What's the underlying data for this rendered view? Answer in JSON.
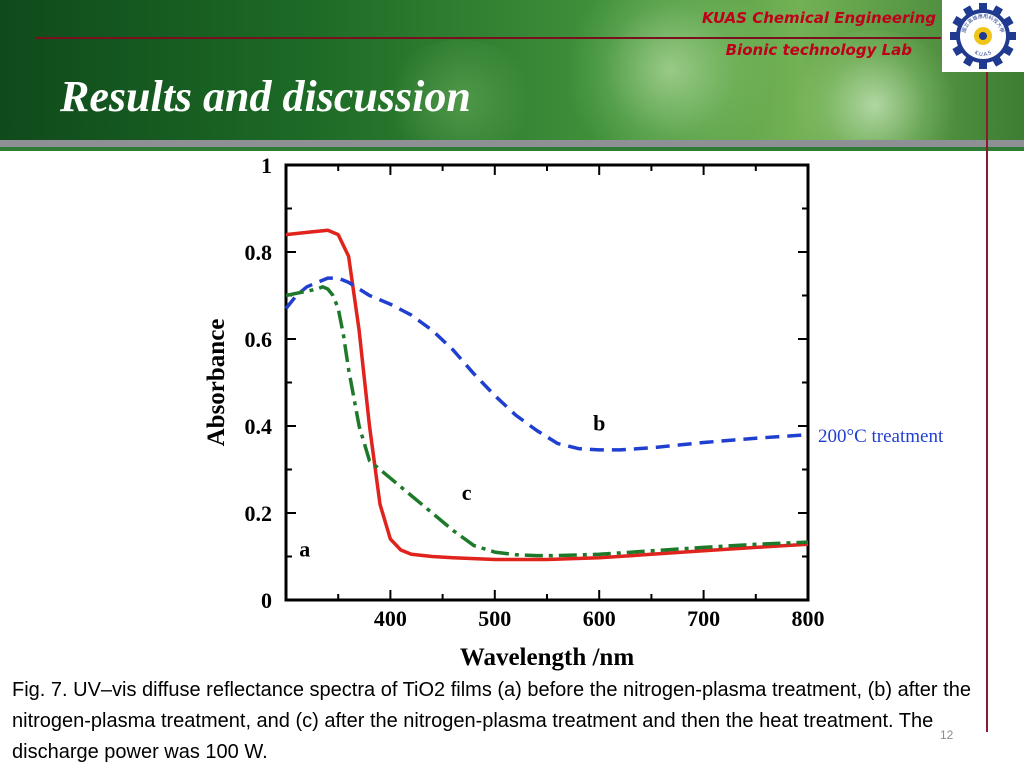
{
  "header": {
    "lab_line1": "KUAS Chemical Engineering",
    "lab_line2": "Bionic  technology  Lab",
    "logo_text_top": "國立高雄應用科技大學",
    "logo_text_bottom": "K.U.A.S",
    "title": "Results and discussion"
  },
  "annotation": "200°C treatment",
  "caption": "Fig. 7. UV–vis diffuse reflectance spectra of TiO2 films (a) before the nitrogen-plasma treatment, (b) after the nitrogen-plasma treatment, and (c) after the nitrogen-plasma treatment and then the heat treatment. The discharge power was 100 W.",
  "page_number": "12",
  "colors": {
    "title_accent": "#c0001b",
    "series_a": "#e0231c",
    "series_b": "#1f3fd0",
    "series_c": "#1e7a2a",
    "annotation": "#1f3fd0"
  },
  "chart_data": {
    "type": "line",
    "title": "",
    "xlabel": "Wavelength /nm",
    "ylabel": "Absorbance",
    "xlim": [
      300,
      800
    ],
    "ylim": [
      0,
      1
    ],
    "xticks": [
      400,
      500,
      600,
      700,
      800
    ],
    "xtick_labels": [
      "400",
      "500",
      "600",
      "700",
      "800"
    ],
    "yticks": [
      0,
      0.2,
      0.4,
      0.6,
      0.8,
      1
    ],
    "ytick_labels": [
      "0",
      "0.2",
      "0.4",
      "0.6",
      "0.8",
      "1"
    ],
    "grid": false,
    "series": [
      {
        "name": "a",
        "style": "solid",
        "color": "#e0231c",
        "x": [
          300,
          320,
          340,
          350,
          360,
          370,
          380,
          390,
          400,
          410,
          420,
          440,
          460,
          500,
          550,
          600,
          650,
          700,
          750,
          800
        ],
        "y": [
          0.84,
          0.845,
          0.85,
          0.84,
          0.79,
          0.62,
          0.4,
          0.22,
          0.14,
          0.115,
          0.105,
          0.1,
          0.097,
          0.093,
          0.093,
          0.097,
          0.105,
          0.113,
          0.121,
          0.128
        ]
      },
      {
        "name": "b",
        "style": "dashed",
        "color": "#1f3fd0",
        "x": [
          300,
          310,
          320,
          330,
          340,
          350,
          360,
          370,
          380,
          400,
          420,
          440,
          460,
          480,
          500,
          520,
          540,
          560,
          580,
          600,
          620,
          650,
          700,
          750,
          800
        ],
        "y": [
          0.67,
          0.7,
          0.72,
          0.73,
          0.74,
          0.74,
          0.73,
          0.715,
          0.7,
          0.68,
          0.655,
          0.62,
          0.575,
          0.52,
          0.47,
          0.425,
          0.39,
          0.36,
          0.348,
          0.345,
          0.345,
          0.35,
          0.362,
          0.372,
          0.38
        ]
      },
      {
        "name": "c",
        "style": "dash-dot",
        "color": "#1e7a2a",
        "x": [
          300,
          310,
          320,
          330,
          335,
          340,
          345,
          350,
          355,
          360,
          370,
          380,
          400,
          420,
          440,
          460,
          480,
          500,
          520,
          540,
          560,
          600,
          650,
          700,
          750,
          800
        ],
        "y": [
          0.7,
          0.705,
          0.71,
          0.715,
          0.72,
          0.715,
          0.7,
          0.67,
          0.61,
          0.53,
          0.4,
          0.32,
          0.28,
          0.24,
          0.2,
          0.16,
          0.125,
          0.11,
          0.104,
          0.102,
          0.102,
          0.105,
          0.113,
          0.121,
          0.128,
          0.133
        ]
      }
    ],
    "annotations": [
      {
        "text": "a",
        "x": 318,
        "y": 0.1
      },
      {
        "text": "b",
        "x": 600,
        "y": 0.39
      },
      {
        "text": "c",
        "x": 473,
        "y": 0.23
      }
    ]
  }
}
